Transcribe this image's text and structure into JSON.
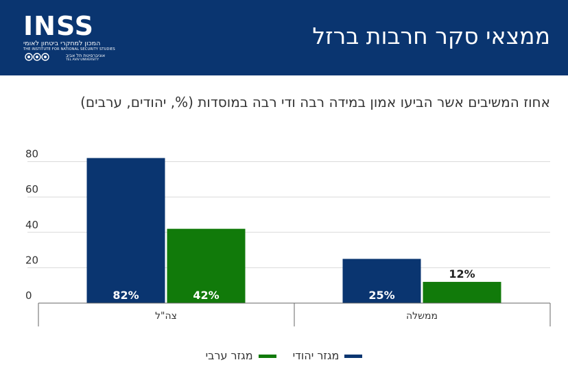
{
  "header": {
    "logo_text": "INSS",
    "logo_hebrew": "המכון למחקרי ביטחון לאומי",
    "logo_english": "THE INSTITUTE FOR NATIONAL SECURITY STUDIES",
    "univ_english": "TEL AVIV UNIVERSITY",
    "univ_hebrew": "אוניברסיטת תל אביב",
    "title": "ממצאי סקר חרבות ברזל",
    "background_color": "#0a3570"
  },
  "subtitle": "אחוז המשיבים אשר הביעו אמון במידה רבה ודי רבה במוסדות (%, יהודים, ערבים)",
  "chart_data": {
    "type": "bar",
    "categories": [
      "צה\"ל",
      "ממשלה"
    ],
    "series": [
      {
        "name": "מגזר יהודי",
        "values": [
          82,
          25
        ],
        "labels": [
          "82%",
          "25%"
        ],
        "color": "#0a3570"
      },
      {
        "name": "מגזר ערבי",
        "values": [
          42,
          12
        ],
        "labels": [
          "42%",
          "12%"
        ],
        "color": "#117a0a"
      }
    ],
    "y_ticks": [
      "0",
      "20",
      "40",
      "60",
      "80"
    ],
    "ylim": [
      0,
      85
    ],
    "grid": true,
    "legend_position": "bottom"
  }
}
